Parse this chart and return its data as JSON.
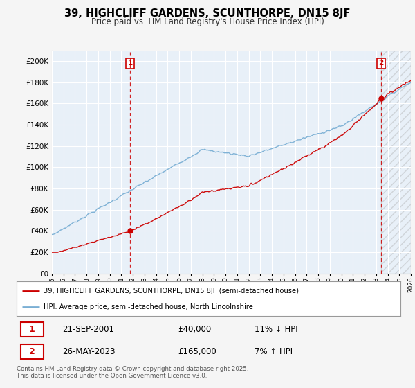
{
  "title": "39, HIGHCLIFF GARDENS, SCUNTHORPE, DN15 8JF",
  "subtitle": "Price paid vs. HM Land Registry's House Price Index (HPI)",
  "sale1_date": "21-SEP-2001",
  "sale1_price": 40000,
  "sale1_label": "£40,000",
  "sale1_hpi_diff": "11% ↓ HPI",
  "sale2_date": "26-MAY-2023",
  "sale2_price": 165000,
  "sale2_label": "£165,000",
  "sale2_hpi_diff": "7% ↑ HPI",
  "legend_line1": "39, HIGHCLIFF GARDENS, SCUNTHORPE, DN15 8JF (semi-detached house)",
  "legend_line2": "HPI: Average price, semi-detached house, North Lincolnshire",
  "footer": "Contains HM Land Registry data © Crown copyright and database right 2025.\nThis data is licensed under the Open Government Licence v3.0.",
  "red_color": "#cc0000",
  "blue_color": "#7aafd4",
  "ylim_min": 0,
  "ylim_max": 210000,
  "yticks": [
    0,
    20000,
    40000,
    60000,
    80000,
    100000,
    120000,
    140000,
    160000,
    180000,
    200000
  ],
  "ytick_labels": [
    "£0",
    "£20K",
    "£40K",
    "£60K",
    "£80K",
    "£100K",
    "£120K",
    "£140K",
    "£160K",
    "£180K",
    "£200K"
  ],
  "xmin": 1995,
  "xmax": 2026,
  "bg_color": "#f5f5f5",
  "plot_bg": "#e8f0f8",
  "sale1_t": 2001.75,
  "sale2_t": 2023.42
}
